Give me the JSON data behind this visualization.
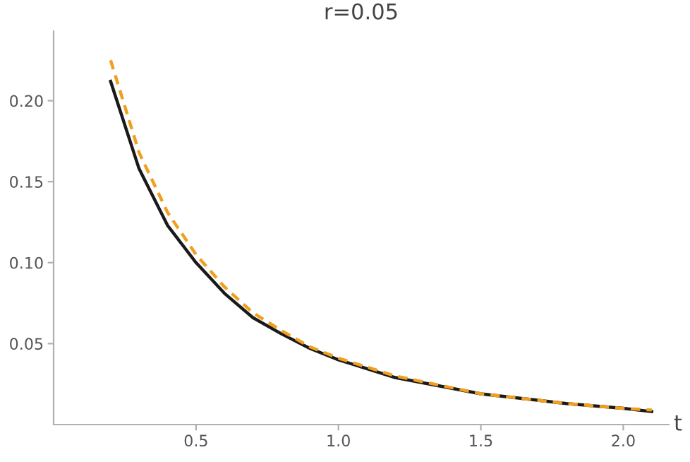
{
  "chart_data": {
    "type": "line",
    "title": "r=0.05",
    "xlabel": "t",
    "series": [
      {
        "color": "#1a1a1a",
        "line_style": "solid",
        "x": [
          0.2,
          0.3,
          0.4,
          0.5,
          0.6,
          0.7,
          0.8,
          0.9,
          1.0,
          1.2,
          1.5,
          1.8,
          2.0,
          2.1
        ],
        "values": [
          0.212,
          0.158,
          0.123,
          0.1,
          0.081,
          0.066,
          0.056,
          0.047,
          0.04,
          0.029,
          0.019,
          0.013,
          0.01,
          0.008
        ]
      },
      {
        "color": "#f0a020",
        "line_style": "dashed",
        "x": [
          0.2,
          0.3,
          0.4,
          0.5,
          0.6,
          0.7,
          0.8,
          0.9,
          1.0,
          1.2,
          1.5,
          1.8,
          2.0,
          2.1
        ],
        "values": [
          0.225,
          0.168,
          0.131,
          0.105,
          0.085,
          0.069,
          0.058,
          0.048,
          0.041,
          0.03,
          0.019,
          0.013,
          0.01,
          0.009
        ]
      }
    ],
    "xlim": [
      0,
      2.16
    ],
    "ylim": [
      0,
      0.243
    ],
    "xticks": [
      {
        "value": 0.5,
        "label": "0.5"
      },
      {
        "value": 1.0,
        "label": "1.0"
      },
      {
        "value": 1.5,
        "label": "1.5"
      },
      {
        "value": 2.0,
        "label": "2.0"
      }
    ],
    "yticks": [
      {
        "value": 0.05,
        "label": "0.05"
      },
      {
        "value": 0.1,
        "label": "0.10"
      },
      {
        "value": 0.15,
        "label": "0.15"
      },
      {
        "value": 0.2,
        "label": "0.20"
      }
    ],
    "grid": false,
    "legend": false,
    "marker": "none"
  }
}
